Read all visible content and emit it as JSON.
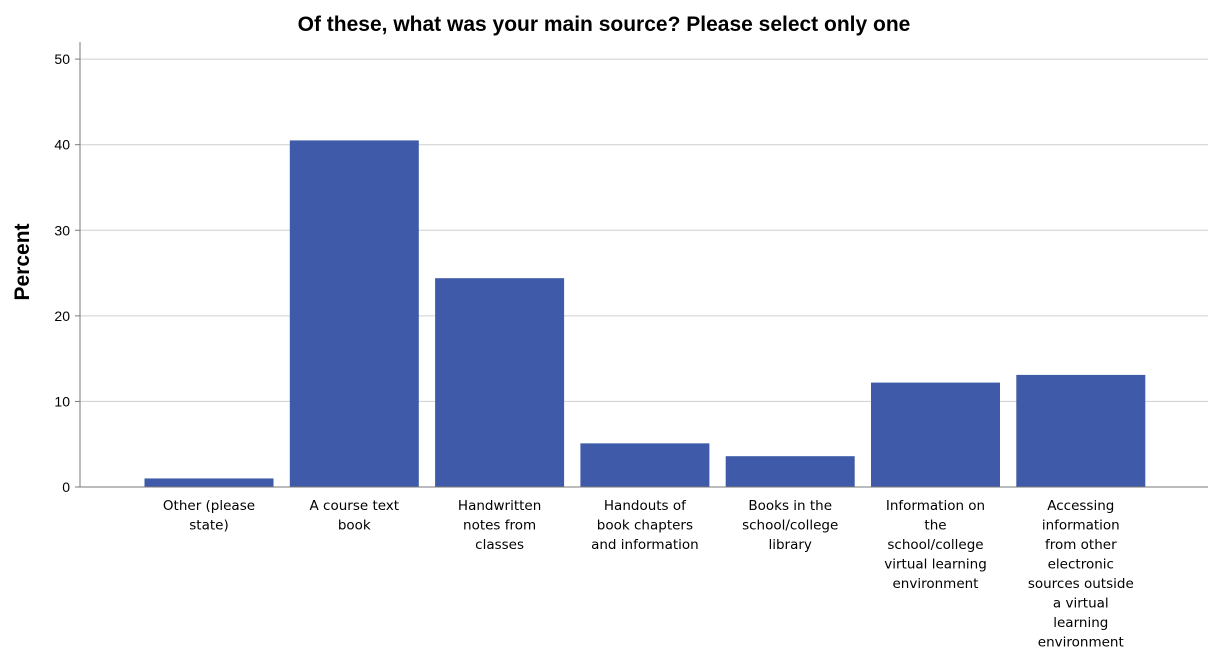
{
  "chart_data": {
    "type": "bar",
    "title": "Of these, what was your main source? Please select only one",
    "xlabel": "",
    "ylabel": "Percent",
    "ylim": [
      0,
      52
    ],
    "yticks": [
      0,
      10,
      20,
      30,
      40,
      50
    ],
    "grid": true,
    "categories": [
      [
        "Other (please",
        "state)"
      ],
      [
        "A course text",
        "book"
      ],
      [
        "Handwritten",
        "notes from",
        "classes"
      ],
      [
        "Handouts of",
        "book chapters",
        "and information"
      ],
      [
        "Books in the",
        "school/college",
        "library"
      ],
      [
        "Information on",
        "the",
        "school/college",
        "virtual learning",
        "environment"
      ],
      [
        "Accessing",
        "information",
        "from other",
        "electronic",
        "sources outside",
        "a virtual",
        "learning",
        "environment"
      ]
    ],
    "values": [
      1.0,
      40.5,
      24.4,
      5.1,
      3.6,
      12.2,
      13.1
    ],
    "colors": {
      "bar": "#3f5aa8"
    }
  }
}
